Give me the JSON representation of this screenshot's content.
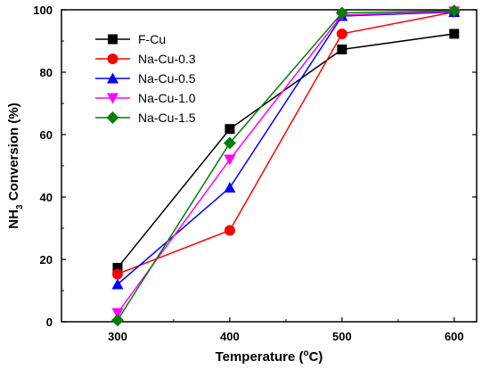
{
  "chart_data": {
    "type": "line",
    "title": "",
    "xlabel": {
      "main": "Temperature (",
      "sup": "o",
      "tail": "C)"
    },
    "ylabel": {
      "pre": "NH",
      "sub": "3",
      "post": " Conversion (%)"
    },
    "x": [
      300,
      400,
      500,
      600
    ],
    "xticks": [
      "300",
      "400",
      "500",
      "600"
    ],
    "xlim": [
      250,
      620
    ],
    "yticks": [
      "0",
      "20",
      "40",
      "60",
      "80",
      "100"
    ],
    "ylim": [
      0,
      100
    ],
    "grid": false,
    "legend_position": "top-left",
    "series": [
      {
        "name": "F-Cu",
        "color": "#000000",
        "marker": "square",
        "values": [
          17.3,
          61.8,
          87.3,
          92.3
        ]
      },
      {
        "name": "Na-Cu-0.3",
        "color": "#ff0000",
        "marker": "circle",
        "values": [
          15.3,
          29.3,
          92.3,
          99.3
        ]
      },
      {
        "name": "Na-Cu-0.5",
        "color": "#0000ff",
        "marker": "triangle-up",
        "values": [
          12.0,
          43.0,
          98.0,
          99.3
        ]
      },
      {
        "name": "Na-Cu-1.0",
        "color": "#ff00ff",
        "marker": "triangle-down",
        "values": [
          2.8,
          52.0,
          98.3,
          99.5
        ]
      },
      {
        "name": "Na-Cu-1.5",
        "color": "#008000",
        "marker": "diamond",
        "values": [
          0.5,
          57.3,
          99.0,
          99.7
        ]
      }
    ]
  }
}
